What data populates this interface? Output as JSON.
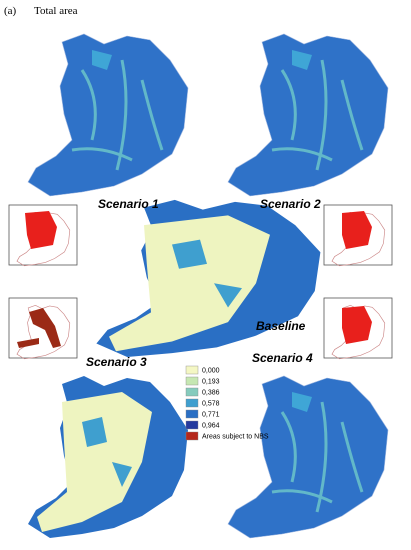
{
  "header": {
    "panel": "(a)",
    "title": "Total area"
  },
  "maps": {
    "scenario_1": "Scenario 1",
    "scenario_2": "Scenario 2",
    "baseline": "Baseline",
    "scenario_3": "Scenario 3",
    "scenario_4": "Scenario 4"
  },
  "legend": {
    "items": [
      {
        "label": "0,000",
        "color": "#f4f7c4"
      },
      {
        "label": "0,193",
        "color": "#c6e7b2"
      },
      {
        "label": "0,386",
        "color": "#86cbbd"
      },
      {
        "label": "0,578",
        "color": "#3f9fcf"
      },
      {
        "label": "0,771",
        "color": "#2a6fc4"
      },
      {
        "label": "0,964",
        "color": "#243a9e"
      },
      {
        "label": "Areas subject to NBS",
        "color": "#b5281c"
      }
    ]
  }
}
